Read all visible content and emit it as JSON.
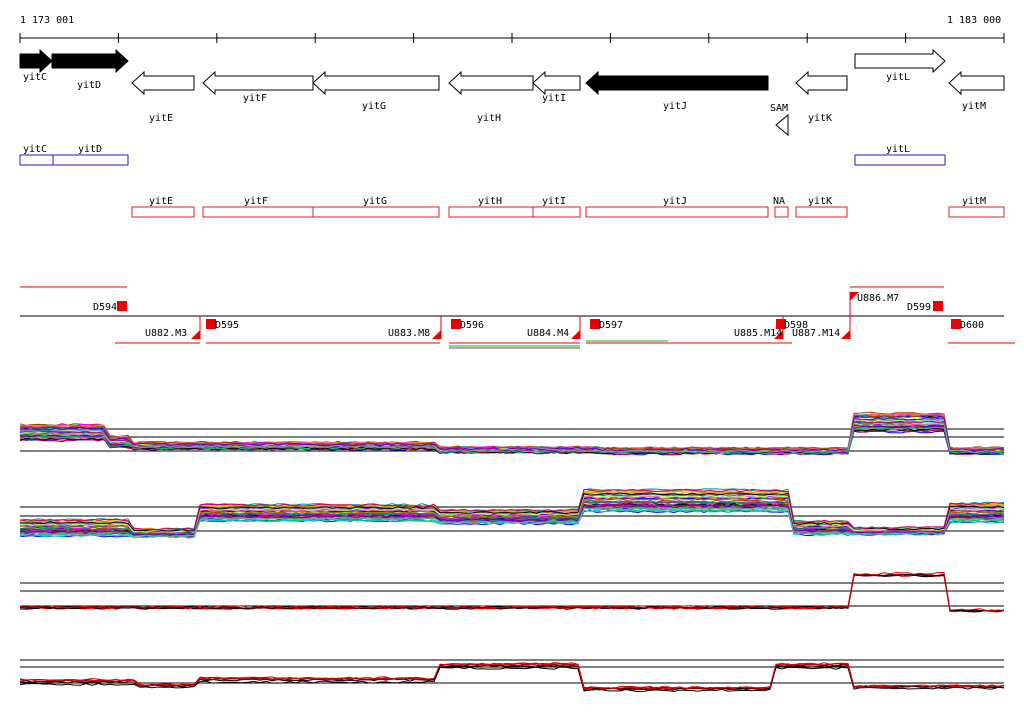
{
  "scale": {
    "start_label": "1 173 001",
    "end_label": "1 183 000"
  },
  "genes": [
    {
      "name": "yitC",
      "strand": "+",
      "fill": "#000000",
      "annot": "blue"
    },
    {
      "name": "yitD",
      "strand": "+",
      "fill": "#000000",
      "annot": "blue"
    },
    {
      "name": "yitE",
      "strand": "-",
      "fill": "#ffffff",
      "annot": "red"
    },
    {
      "name": "yitF",
      "strand": "-",
      "fill": "#ffffff",
      "annot": "red"
    },
    {
      "name": "yitG",
      "strand": "-",
      "fill": "#ffffff",
      "annot": "red"
    },
    {
      "name": "yitH",
      "strand": "-",
      "fill": "#ffffff",
      "annot": "red"
    },
    {
      "name": "yitI",
      "strand": "-",
      "fill": "#ffffff",
      "annot": "red"
    },
    {
      "name": "yitJ",
      "strand": "-",
      "fill": "#000000",
      "annot": "red"
    },
    {
      "name": "yitK",
      "strand": "-",
      "fill": "#ffffff",
      "annot": "red"
    },
    {
      "name": "yitL",
      "strand": "+",
      "fill": "#ffffff",
      "annot": "blue"
    },
    {
      "name": "yitM",
      "strand": "-",
      "fill": "#ffffff",
      "annot": "red"
    }
  ],
  "riboswitch": {
    "name": "SAM",
    "annot": "NA"
  },
  "d_features": [
    "D594",
    "D595",
    "D596",
    "D597",
    "D598",
    "D599",
    "D600"
  ],
  "u_features": [
    "U882.M3",
    "U883.M8",
    "U884.M4",
    "U885.M14",
    "U887.M14",
    "U886.M7"
  ],
  "colors": {
    "gene_annot_blue": "#2222bb",
    "gene_annot_red": "#dd2222",
    "feature_red": "#ee0000",
    "track_black": "#000000",
    "track_red": "#dd0000",
    "green": "#22aa22"
  }
}
